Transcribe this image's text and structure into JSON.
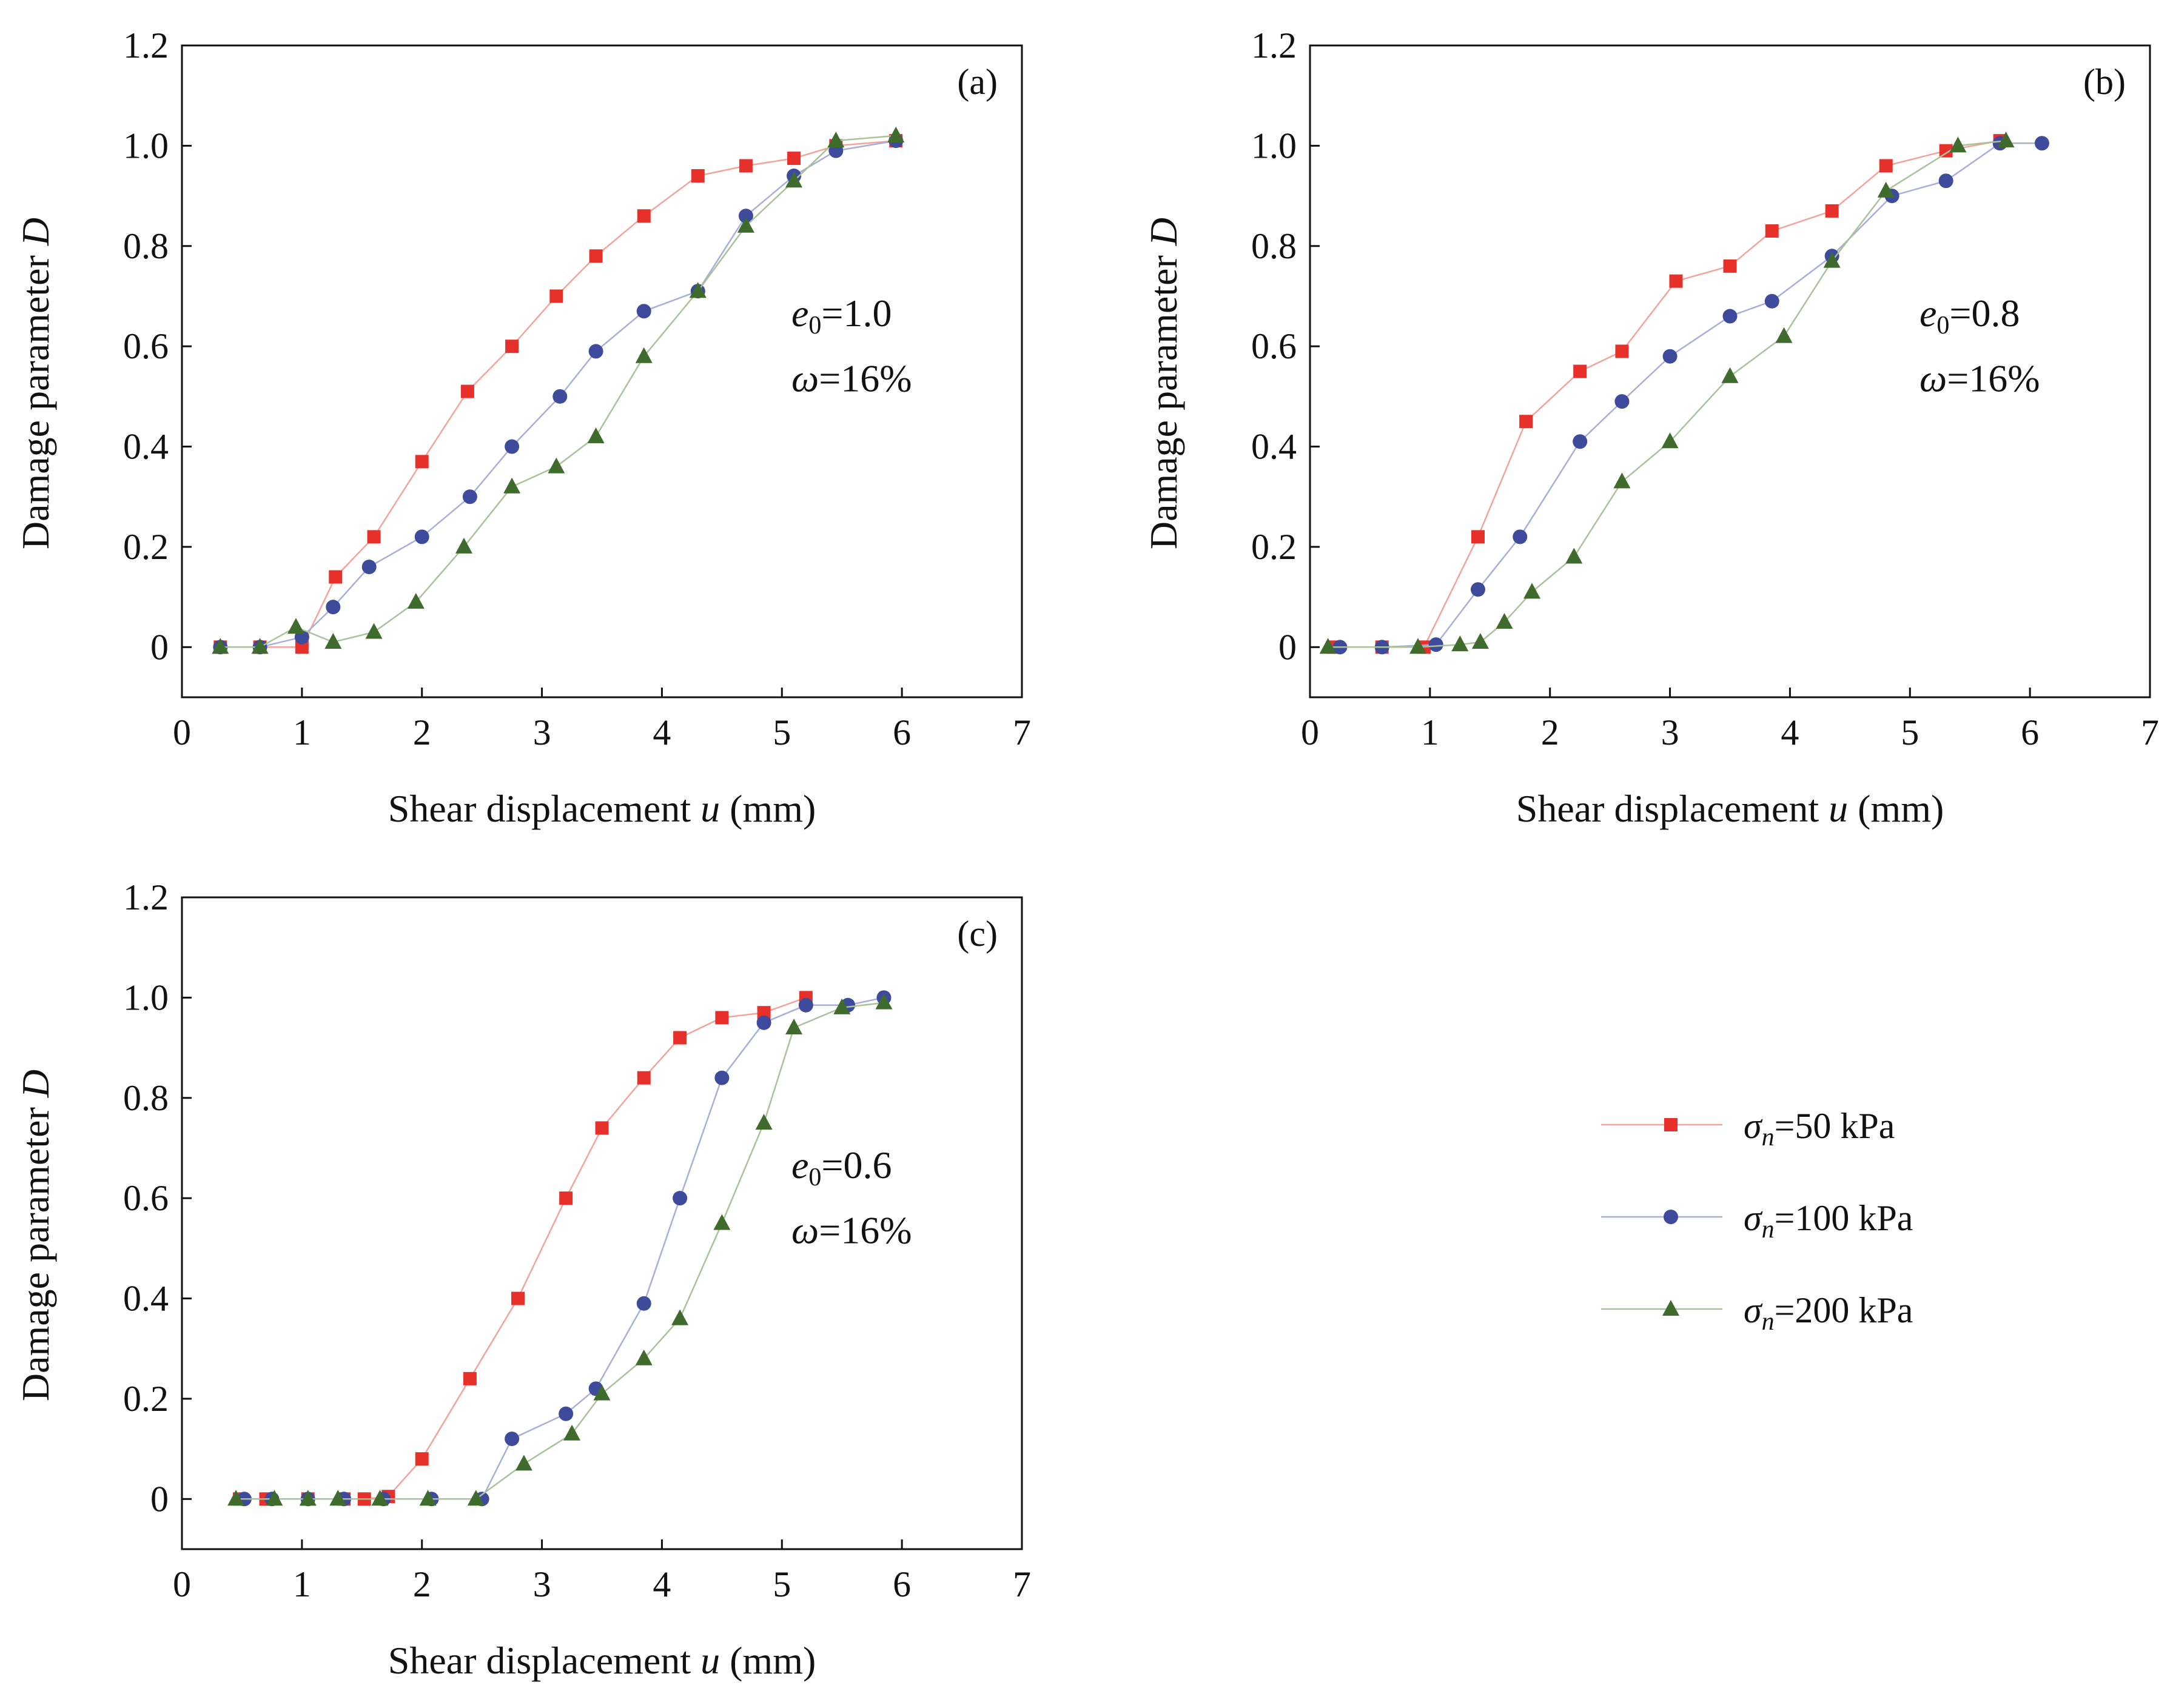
{
  "chart_data": [
    {
      "type": "line",
      "panel": "(a)",
      "xlabel": {
        "main": "Shear displacement ",
        "var": "u",
        "unit": " (mm)"
      },
      "ylabel": {
        "main": "Damage parameter ",
        "var": "D"
      },
      "xlim": [
        0,
        7
      ],
      "ylim": [
        -0.1,
        1.2
      ],
      "xticks": [
        0,
        1,
        2,
        3,
        4,
        5,
        6,
        7
      ],
      "yticks": [
        0,
        0.2,
        0.4,
        0.6,
        0.8,
        1.0,
        1.2
      ],
      "ytick_labels": [
        "0",
        "0.2",
        "0.4",
        "0.6",
        "0.8",
        "1.0",
        "1.2"
      ],
      "annotation": {
        "e_sym": "e",
        "e_sub": "0",
        "e_val": "=1.0",
        "w_sym": "ω",
        "w_val": "=16%"
      },
      "grid": false,
      "series": [
        {
          "name": "σn=50 kPa",
          "x": [
            0.32,
            0.65,
            1.0,
            1.28,
            1.6,
            2.0,
            2.38,
            2.75,
            3.12,
            3.45,
            3.85,
            4.3,
            4.7,
            5.1,
            5.45,
            5.95
          ],
          "y": [
            0.0,
            0.0,
            0.0,
            0.14,
            0.22,
            0.37,
            0.51,
            0.6,
            0.7,
            0.78,
            0.86,
            0.94,
            0.96,
            0.975,
            1.0,
            1.01
          ]
        },
        {
          "name": "σn=100 kPa",
          "x": [
            0.32,
            0.65,
            1.0,
            1.26,
            1.56,
            2.0,
            2.4,
            2.75,
            3.15,
            3.45,
            3.85,
            4.3,
            4.7,
            5.1,
            5.45,
            5.95
          ],
          "y": [
            0.0,
            0.0,
            0.02,
            0.08,
            0.16,
            0.22,
            0.3,
            0.4,
            0.5,
            0.59,
            0.67,
            0.71,
            0.86,
            0.94,
            0.99,
            1.01
          ]
        },
        {
          "name": "σn=200 kPa",
          "x": [
            0.32,
            0.65,
            0.95,
            1.26,
            1.6,
            1.95,
            2.35,
            2.75,
            3.12,
            3.45,
            3.85,
            4.3,
            4.7,
            5.1,
            5.45,
            5.95
          ],
          "y": [
            0.0,
            0.0,
            0.04,
            0.01,
            0.03,
            0.09,
            0.2,
            0.32,
            0.36,
            0.42,
            0.58,
            0.71,
            0.84,
            0.93,
            1.01,
            1.02
          ]
        }
      ]
    },
    {
      "type": "line",
      "panel": "(b)",
      "xlabel": {
        "main": "Shear displacement ",
        "var": "u",
        "unit": " (mm)"
      },
      "ylabel": {
        "main": "Damage parameter ",
        "var": "D"
      },
      "xlim": [
        0,
        7
      ],
      "ylim": [
        -0.1,
        1.2
      ],
      "xticks": [
        0,
        1,
        2,
        3,
        4,
        5,
        6,
        7
      ],
      "yticks": [
        0,
        0.2,
        0.4,
        0.6,
        0.8,
        1.0,
        1.2
      ],
      "ytick_labels": [
        "0",
        "0.2",
        "0.4",
        "0.6",
        "0.8",
        "1.0",
        "1.2"
      ],
      "annotation": {
        "e_sym": "e",
        "e_sub": "0",
        "e_val": "=0.8",
        "w_sym": "ω",
        "w_val": "=16%"
      },
      "grid": false,
      "series": [
        {
          "name": "σn=50 kPa",
          "x": [
            0.2,
            0.6,
            0.95,
            1.4,
            1.8,
            2.25,
            2.6,
            3.05,
            3.5,
            3.85,
            4.35,
            4.8,
            5.3,
            5.75
          ],
          "y": [
            0.0,
            0.0,
            0.0,
            0.22,
            0.45,
            0.55,
            0.59,
            0.73,
            0.76,
            0.83,
            0.87,
            0.96,
            0.99,
            1.01
          ]
        },
        {
          "name": "σn=100 kPa",
          "x": [
            0.25,
            0.6,
            1.05,
            1.4,
            1.75,
            2.25,
            2.6,
            3.0,
            3.5,
            3.85,
            4.35,
            4.85,
            5.3,
            5.75,
            6.1
          ],
          "y": [
            0.0,
            0.0,
            0.005,
            0.115,
            0.22,
            0.41,
            0.49,
            0.58,
            0.66,
            0.69,
            0.78,
            0.9,
            0.93,
            1.005,
            1.005
          ]
        },
        {
          "name": "σn=200 kPa",
          "x": [
            0.15,
            0.9,
            1.25,
            1.42,
            1.62,
            1.85,
            2.2,
            2.6,
            3.0,
            3.5,
            3.95,
            4.35,
            4.8,
            5.4,
            5.8
          ],
          "y": [
            0.0,
            0.0,
            0.005,
            0.01,
            0.05,
            0.11,
            0.18,
            0.33,
            0.41,
            0.54,
            0.62,
            0.77,
            0.91,
            1.0,
            1.01
          ]
        }
      ]
    },
    {
      "type": "line",
      "panel": "(c)",
      "xlabel": {
        "main": "Shear displacement ",
        "var": "u",
        "unit": " (mm)"
      },
      "ylabel": {
        "main": "Damage parameter ",
        "var": "D"
      },
      "xlim": [
        0,
        7
      ],
      "ylim": [
        -0.1,
        1.2
      ],
      "xticks": [
        0,
        1,
        2,
        3,
        4,
        5,
        6,
        7
      ],
      "yticks": [
        0,
        0.2,
        0.4,
        0.6,
        0.8,
        1.0,
        1.2
      ],
      "ytick_labels": [
        "0",
        "0.2",
        "0.4",
        "0.6",
        "0.8",
        "1.0",
        "1.2"
      ],
      "annotation": {
        "e_sym": "e",
        "e_sub": "0",
        "e_val": "=0.6",
        "w_sym": "ω",
        "w_val": "=16%"
      },
      "grid": false,
      "series": [
        {
          "name": "σn=50 kPa",
          "x": [
            0.48,
            0.7,
            1.05,
            1.35,
            1.52,
            1.72,
            2.0,
            2.4,
            2.8,
            3.2,
            3.5,
            3.85,
            4.15,
            4.5,
            4.85,
            5.2
          ],
          "y": [
            0.0,
            0.0,
            0.0,
            0.0,
            0.0,
            0.005,
            0.08,
            0.24,
            0.4,
            0.6,
            0.74,
            0.84,
            0.92,
            0.96,
            0.97,
            1.0
          ]
        },
        {
          "name": "σn=100 kPa",
          "x": [
            0.52,
            0.75,
            1.05,
            1.35,
            1.68,
            2.08,
            2.5,
            2.75,
            3.2,
            3.45,
            3.85,
            4.15,
            4.5,
            4.85,
            5.2,
            5.55,
            5.85
          ],
          "y": [
            0.0,
            0.0,
            0.0,
            0.0,
            0.0,
            0.0,
            0.0,
            0.12,
            0.17,
            0.22,
            0.39,
            0.6,
            0.84,
            0.95,
            0.985,
            0.985,
            1.0
          ]
        },
        {
          "name": "σn=200 kPa",
          "x": [
            0.45,
            0.77,
            1.05,
            1.3,
            1.65,
            2.05,
            2.45,
            2.85,
            3.25,
            3.5,
            3.85,
            4.15,
            4.5,
            4.85,
            5.1,
            5.5,
            5.85
          ],
          "y": [
            0.0,
            0.0,
            0.0,
            0.0,
            0.0,
            0.0,
            0.0,
            0.07,
            0.13,
            0.21,
            0.28,
            0.36,
            0.55,
            0.75,
            0.94,
            0.98,
            0.99
          ]
        }
      ]
    }
  ],
  "legend": {
    "placement": "lower-right",
    "items": [
      {
        "sym": "σ",
        "sub": "n",
        "text": "=50 kPa",
        "color": "#e8302a",
        "marker": "square"
      },
      {
        "sym": "σ",
        "sub": "n",
        "text": "=100 kPa",
        "color": "#3e4b9c",
        "marker": "circle"
      },
      {
        "sym": "σ",
        "sub": "n",
        "text": "=200 kPa",
        "color": "#3f6b2c",
        "marker": "triangle"
      }
    ]
  },
  "colors": {
    "series_markers": [
      "#e8302a",
      "#3e4b9c",
      "#3f6b2c"
    ],
    "series_lines": [
      "#f2a39a",
      "#a8aedb",
      "#a8c29a"
    ],
    "axis": "#111111"
  }
}
